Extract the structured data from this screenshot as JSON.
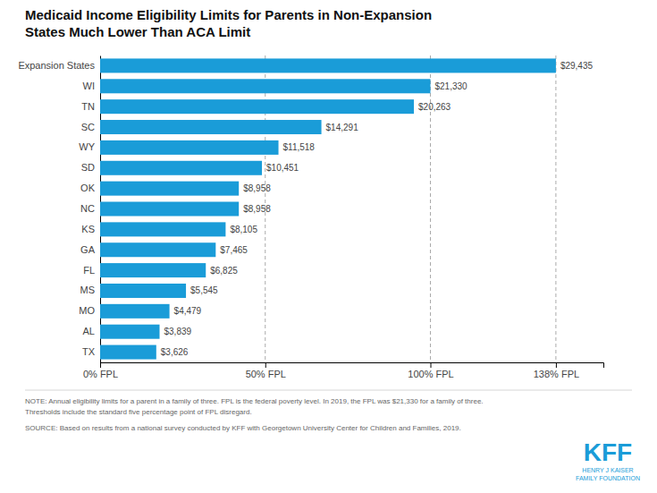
{
  "chart_data": {
    "type": "bar",
    "orientation": "horizontal",
    "title": "Medicaid Income Eligibility Limits for Parents in Non-Expansion\nStates Much Lower Than ACA Limit",
    "categories": [
      "Expansion States",
      "WI",
      "TN",
      "SC",
      "WY",
      "SD",
      "OK",
      "NC",
      "KS",
      "GA",
      "FL",
      "MS",
      "MO",
      "AL",
      "TX"
    ],
    "values": [
      29435,
      21330,
      20263,
      14291,
      11518,
      10451,
      8958,
      8958,
      8105,
      7465,
      6825,
      5545,
      4479,
      3839,
      3626
    ],
    "value_labels": [
      "$29,435",
      "$21,330",
      "$20,263",
      "$14,291",
      "$11,518",
      "$10,451",
      "$8,958",
      "$8,958",
      "$8,105",
      "$7,465",
      "$6,825",
      "$5,545",
      "$4,479",
      "$3,839",
      "$3,626"
    ],
    "data_labels": true,
    "color": "#1a9cd8",
    "xlim": [
      0,
      32500
    ],
    "xticks": [
      {
        "value": 0,
        "label": "0% FPL"
      },
      {
        "value": 10665,
        "label": "50% FPL"
      },
      {
        "value": 21330,
        "label": "100% FPL"
      },
      {
        "value": 29435,
        "label": "138% FPL"
      }
    ],
    "reference_lines": [
      10665,
      21330,
      29435
    ],
    "annotations": [
      "NOTE: Annual eligibility limits for a parent in a family of three. FPL is the federal poverty level. In 2019, the FPL was $21,330 for a family of three.\nThresholds include the standard five percentage point of FPL disregard.",
      "SOURCE: Based on results from a national survey conducted by KFF with Georgetown University Center for Children and Families, 2019.",
      "KFF",
      "HENRY J KAISER\nFAMILY FOUNDATION"
    ]
  }
}
